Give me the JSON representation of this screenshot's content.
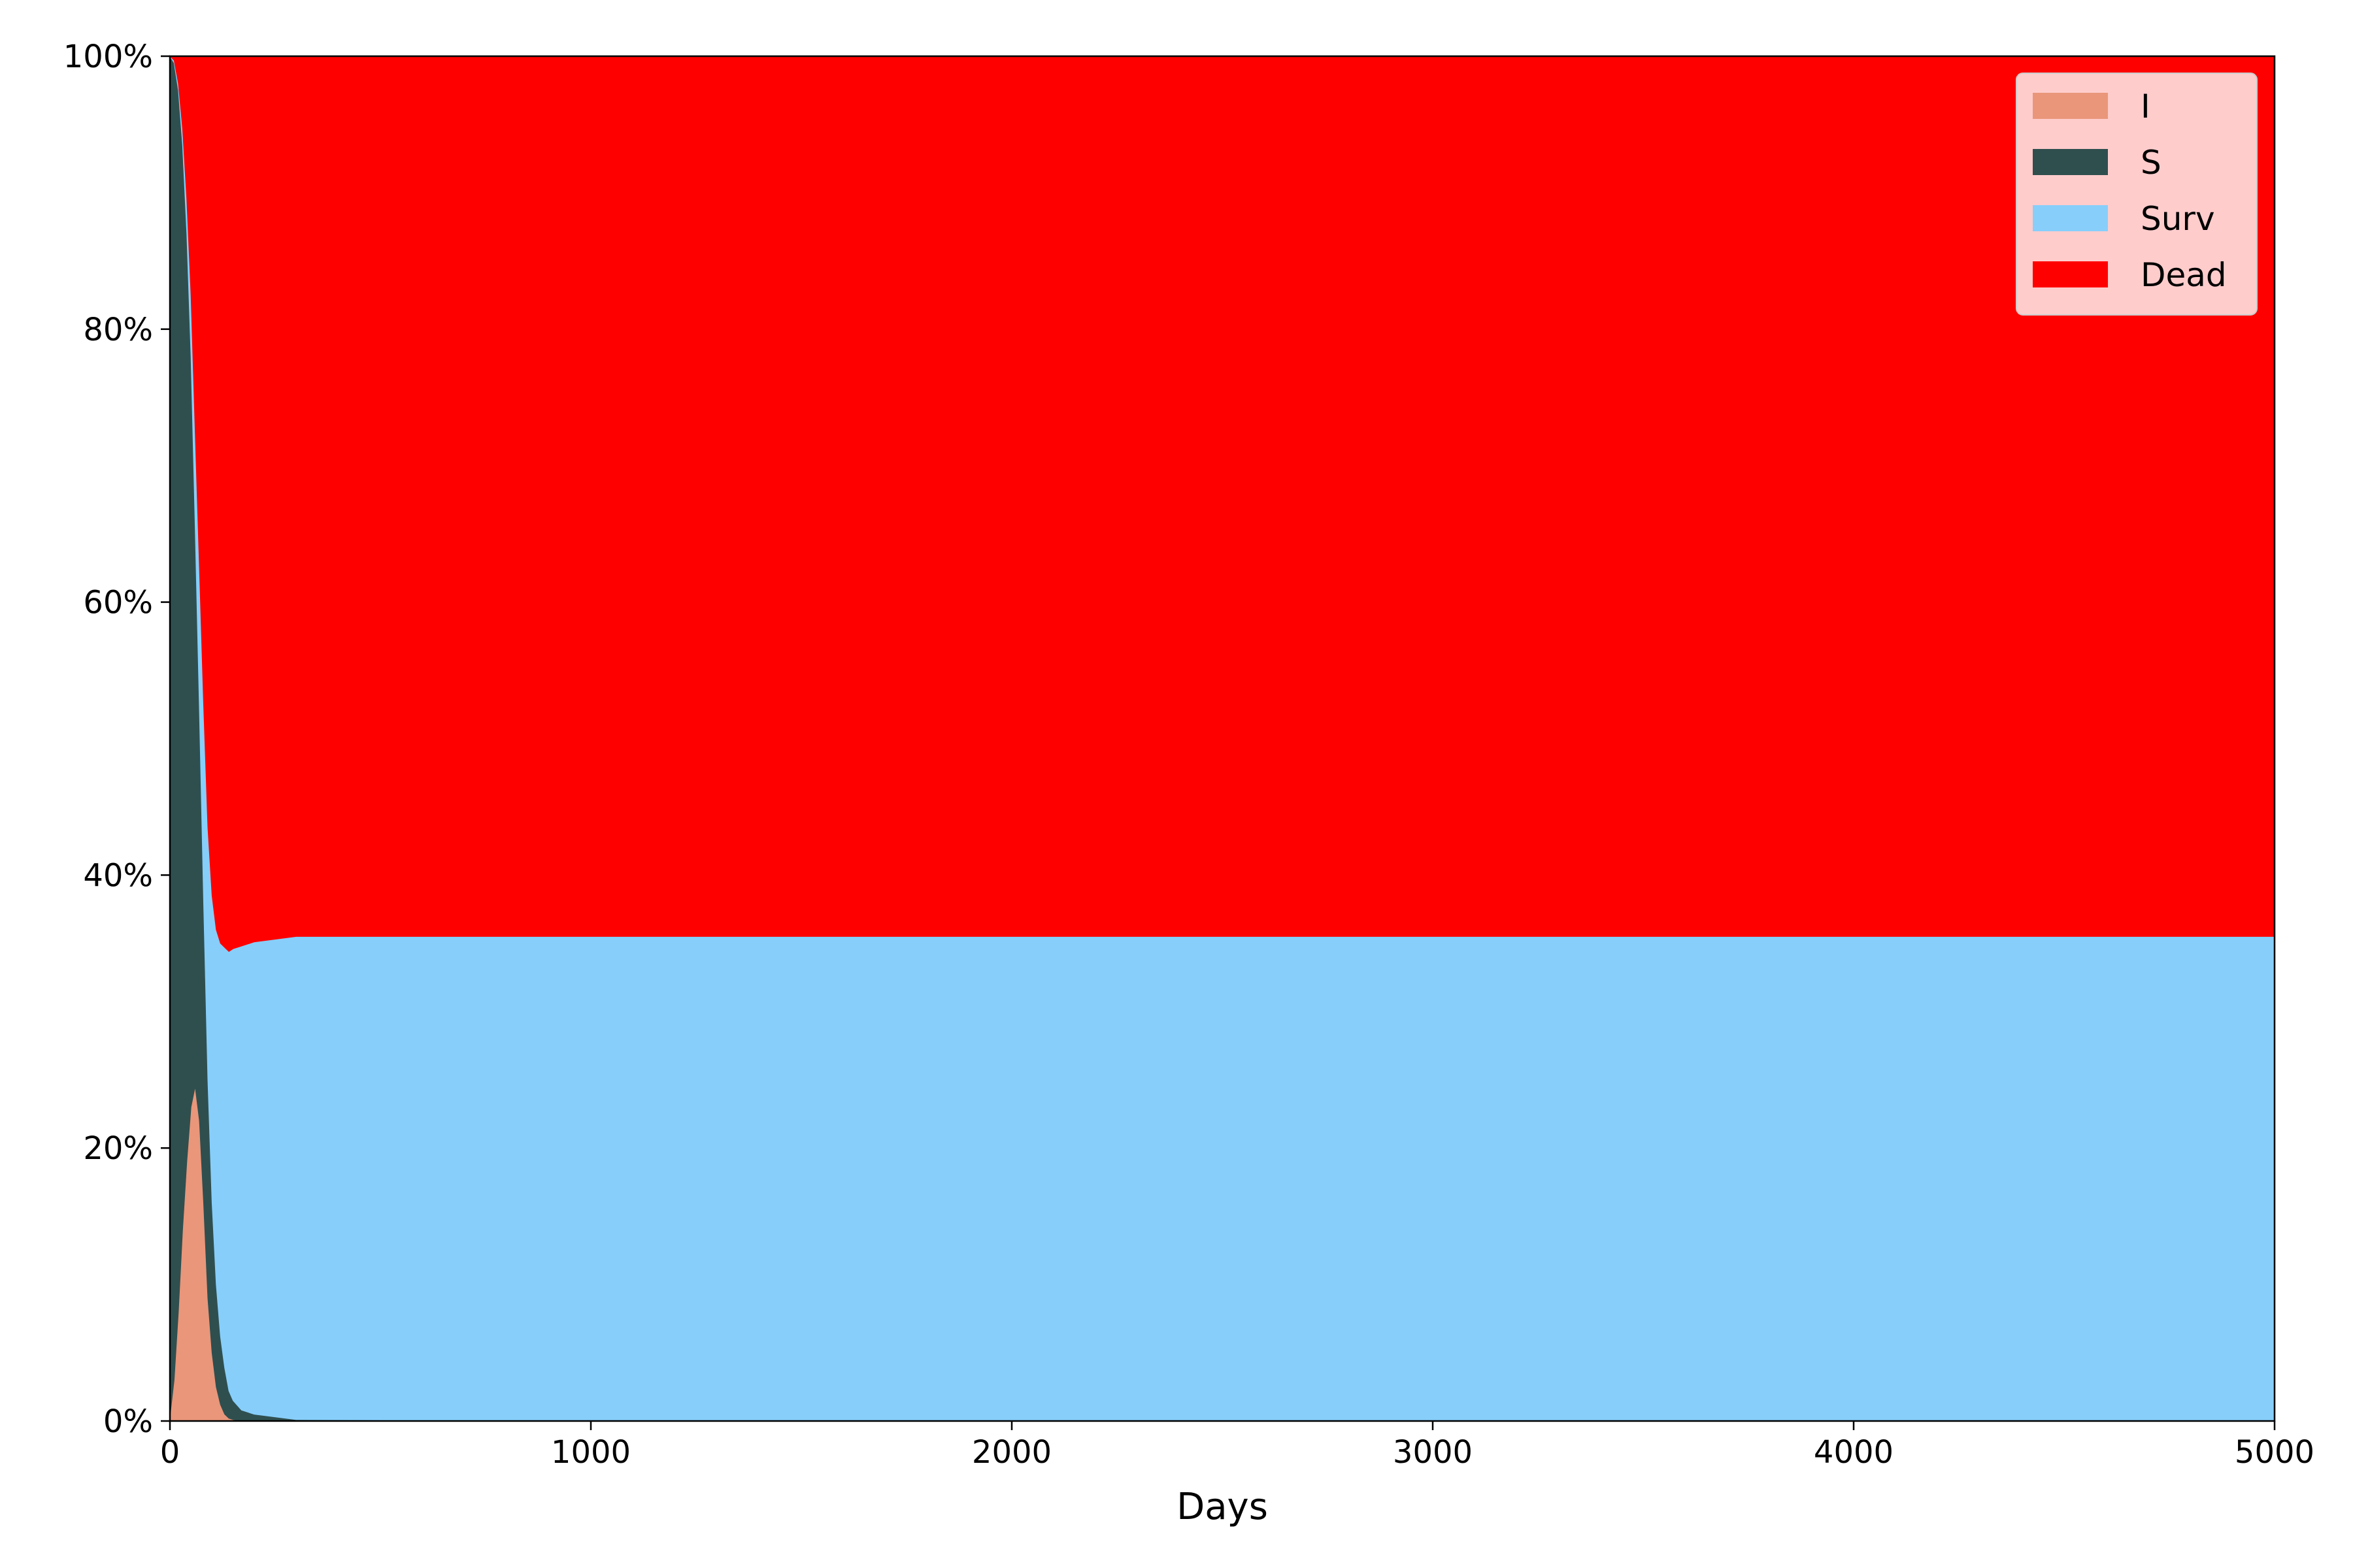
{
  "chart_data": {
    "type": "area",
    "stacked": true,
    "title": "",
    "xlabel": "Days",
    "ylabel": "",
    "xlim": [
      0,
      5000
    ],
    "ylim": [
      0,
      100
    ],
    "x_ticks": [
      "0",
      "1000",
      "2000",
      "3000",
      "4000",
      "5000"
    ],
    "y_ticks": [
      "0%",
      "20%",
      "40%",
      "60%",
      "80%",
      "100%"
    ],
    "grid": false,
    "legend_position": "top-right",
    "x": [
      0,
      10,
      20,
      30,
      40,
      50,
      60,
      70,
      80,
      90,
      100,
      110,
      120,
      130,
      140,
      150,
      170,
      200,
      300,
      1000,
      2000,
      3000,
      4000,
      5000
    ],
    "series": [
      {
        "name": "I",
        "color": "#e9967a",
        "values": [
          0.3,
          3,
          8,
          14,
          19,
          23,
          24.5,
          22,
          16,
          9,
          5,
          2.5,
          1.2,
          0.5,
          0.2,
          0.1,
          0,
          0,
          0,
          0,
          0,
          0,
          0,
          0
        ]
      },
      {
        "name": "S",
        "color": "#2f4f4f",
        "values": [
          99.7,
          96.5,
          89.5,
          79.5,
          68,
          55,
          41,
          30,
          22,
          16,
          11,
          7.5,
          5,
          3.4,
          2,
          1.4,
          0.8,
          0.5,
          0.1,
          0,
          0,
          0,
          0,
          0
        ]
      },
      {
        "name": "Surv",
        "color": "#87cefa",
        "values": [
          0,
          0.2,
          0.5,
          1.2,
          2.5,
          4.5,
          7,
          10.5,
          14.5,
          18.5,
          22.5,
          26,
          28.8,
          30.8,
          32.2,
          33.1,
          34,
          34.6,
          35.4,
          35.5,
          35.5,
          35.5,
          35.5,
          35.5
        ]
      },
      {
        "name": "Dead",
        "color": "#ff0000",
        "values": [
          0,
          0.3,
          2,
          5.3,
          10.5,
          17.5,
          27.5,
          37.5,
          47.5,
          56.5,
          61.5,
          64,
          65,
          65.3,
          65.6,
          65.4,
          65.2,
          64.9,
          64.5,
          64.5,
          64.5,
          64.5,
          64.5,
          64.5
        ]
      }
    ]
  }
}
